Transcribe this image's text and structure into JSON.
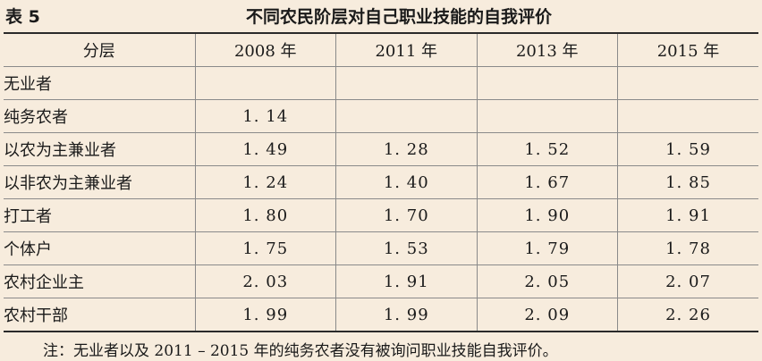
{
  "caption": {
    "label": "表 5",
    "title": "不同农民阶层对自己职业技能的自我评价"
  },
  "table": {
    "headers": [
      "分层",
      "2008 年",
      "2011 年",
      "2013 年",
      "2015 年"
    ],
    "rows": [
      {
        "label": "无业者",
        "values": [
          "",
          "",
          "",
          ""
        ]
      },
      {
        "label": "纯务农者",
        "values": [
          "1. 14",
          "",
          "",
          ""
        ]
      },
      {
        "label": "以农为主兼业者",
        "values": [
          "1. 49",
          "1. 28",
          "1. 52",
          "1. 59"
        ]
      },
      {
        "label": "以非农为主兼业者",
        "values": [
          "1. 24",
          "1. 40",
          "1. 67",
          "1. 85"
        ]
      },
      {
        "label": "打工者",
        "values": [
          "1. 80",
          "1. 70",
          "1. 90",
          "1. 91"
        ]
      },
      {
        "label": "个体户",
        "values": [
          "1. 75",
          "1. 53",
          "1. 79",
          "1. 78"
        ]
      },
      {
        "label": "农村企业主",
        "values": [
          "2. 03",
          "1. 91",
          "2. 05",
          "2. 07"
        ]
      },
      {
        "label": "农村干部",
        "values": [
          "1. 99",
          "1. 99",
          "2. 09",
          "2. 26"
        ]
      }
    ]
  },
  "note": "注：无业者以及 2011 – 2015 年的纯务农者没有被询问职业技能自我评价。"
}
